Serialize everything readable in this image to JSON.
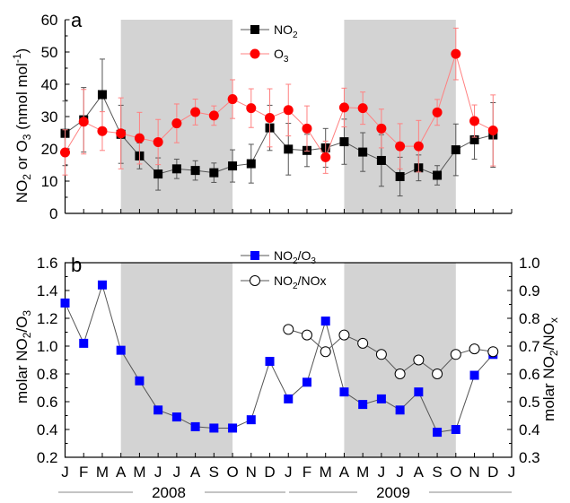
{
  "chart_data": [
    {
      "panel": "a",
      "type": "line",
      "x_tick_labels": [
        "J",
        "F",
        "M",
        "A",
        "M",
        "J",
        "J",
        "A",
        "S",
        "O",
        "N",
        "D",
        "J",
        "F",
        "M",
        "A",
        "M",
        "J",
        "J",
        "A",
        "S",
        "O",
        "N",
        "D",
        "J"
      ],
      "year_labels": [
        "2008",
        "2009"
      ],
      "ylabel": "NO2 or O3 (nmol mol-1)",
      "ylim": [
        0,
        60
      ],
      "y_ticks": [
        0,
        10,
        20,
        30,
        40,
        50,
        60
      ],
      "shaded_spans_month_index": [
        [
          3,
          9
        ],
        [
          15,
          21
        ]
      ],
      "shade_color": "#d3d3d3",
      "series": [
        {
          "name": "NO2",
          "marker": "square",
          "color": "#000000",
          "line_color": "#555555",
          "x": [
            0,
            1,
            2,
            3,
            4,
            5,
            6,
            7,
            8,
            9,
            10,
            11,
            12,
            13,
            14,
            15,
            16,
            17,
            18,
            19,
            20,
            21,
            22,
            23
          ],
          "values": [
            24.8,
            29.0,
            36.8,
            24.5,
            17.8,
            12.2,
            13.8,
            13.3,
            12.6,
            14.7,
            15.4,
            26.5,
            19.9,
            19.5,
            20.3,
            22.2,
            19.0,
            16.4,
            11.4,
            14.1,
            11.8,
            19.7,
            22.8,
            24.3
          ],
          "error": [
            10,
            10,
            11,
            9,
            4,
            5,
            3,
            3,
            3,
            5,
            6,
            7,
            8,
            5,
            6,
            7,
            6,
            8,
            6,
            4,
            3,
            8,
            6,
            10
          ]
        },
        {
          "name": "O3",
          "marker": "circle",
          "color": "#ff0000",
          "line_color": "#ff8080",
          "x": [
            0,
            1,
            2,
            3,
            4,
            5,
            6,
            7,
            8,
            9,
            10,
            11,
            12,
            13,
            14,
            15,
            16,
            17,
            18,
            19,
            20,
            21,
            22,
            23
          ],
          "values": [
            18.9,
            28.4,
            25.5,
            24.8,
            23.3,
            22.1,
            27.9,
            31.4,
            30.3,
            35.4,
            32.6,
            29.6,
            32.0,
            26.3,
            17.4,
            32.8,
            32.6,
            26.3,
            20.8,
            20.8,
            31.3,
            49.4,
            28.6,
            25.7
          ],
          "error": [
            7,
            10,
            6,
            11,
            8,
            7,
            6,
            4,
            3,
            6,
            6,
            9,
            8,
            7,
            5,
            6,
            5,
            6,
            7,
            8,
            4,
            8,
            5,
            11
          ]
        }
      ]
    },
    {
      "panel": "b",
      "type": "line",
      "x_tick_labels": [
        "J",
        "F",
        "M",
        "A",
        "M",
        "J",
        "J",
        "A",
        "S",
        "O",
        "N",
        "D",
        "J",
        "F",
        "M",
        "A",
        "M",
        "J",
        "J",
        "A",
        "S",
        "O",
        "N",
        "D",
        "J"
      ],
      "ylabel_left": "molar NO2/O3",
      "ylabel_right": "molar NO2/NOx",
      "ylim_left": [
        0.2,
        1.6
      ],
      "ylim_right": [
        0.3,
        1.0
      ],
      "y_ticks_left": [
        "0.2",
        "0.4",
        "0.6",
        "0.8",
        "1.0",
        "1.2",
        "1.4",
        "1.6"
      ],
      "y_ticks_right": [
        "0.3",
        "0.4",
        "0.5",
        "0.6",
        "0.7",
        "0.8",
        "0.9",
        "1.0"
      ],
      "shaded_spans_month_index": [
        [
          3,
          9
        ],
        [
          15,
          21
        ]
      ],
      "series": [
        {
          "name": "NO2/O3",
          "axis": "left",
          "marker": "square",
          "color": "#0000ff",
          "x": [
            0,
            1,
            2,
            3,
            4,
            5,
            6,
            7,
            8,
            9,
            10,
            11,
            12,
            13,
            14,
            15,
            16,
            17,
            18,
            19,
            20,
            21,
            22,
            23
          ],
          "values": [
            1.31,
            1.02,
            1.44,
            0.97,
            0.75,
            0.54,
            0.49,
            0.42,
            0.41,
            0.41,
            0.47,
            0.89,
            0.62,
            0.74,
            1.18,
            0.67,
            0.58,
            0.62,
            0.54,
            0.67,
            0.38,
            0.4,
            0.79,
            0.94
          ]
        },
        {
          "name": "NO2/NOx",
          "axis": "right",
          "marker": "open-circle",
          "color": "#000000",
          "x": [
            12,
            13,
            14,
            15,
            16,
            17,
            18,
            19,
            20,
            21,
            22,
            23
          ],
          "values": [
            0.76,
            0.74,
            0.68,
            0.74,
            0.71,
            0.67,
            0.6,
            0.65,
            0.6,
            0.67,
            0.69,
            0.68
          ]
        }
      ]
    }
  ],
  "panel_letters": {
    "a": "a",
    "b": "b"
  },
  "legend_a": {
    "no2": "NO",
    "no2_sub": "2",
    "o3": "O",
    "o3_sub": "3"
  },
  "legend_b": {
    "ratio1_a": "NO",
    "ratio1_sub": "2",
    "ratio1_b": "/O",
    "ratio1_sub2": "3",
    "ratio2_a": "NO",
    "ratio2_sub": "2",
    "ratio2_b": "/NOx"
  },
  "axis_text": {
    "a_left": {
      "p1": "NO",
      "s1": "2",
      "p2": " or O",
      "s2": "3",
      "p3": " (nmol mol",
      "sup": "-1",
      "p4": ")"
    },
    "b_left": {
      "p1": "molar NO",
      "s1": "2",
      "p2": "/O",
      "s2": "3"
    },
    "b_right": {
      "p1": "molar NO",
      "s1": "2",
      "p2": "/NO",
      "s2": "x"
    }
  }
}
